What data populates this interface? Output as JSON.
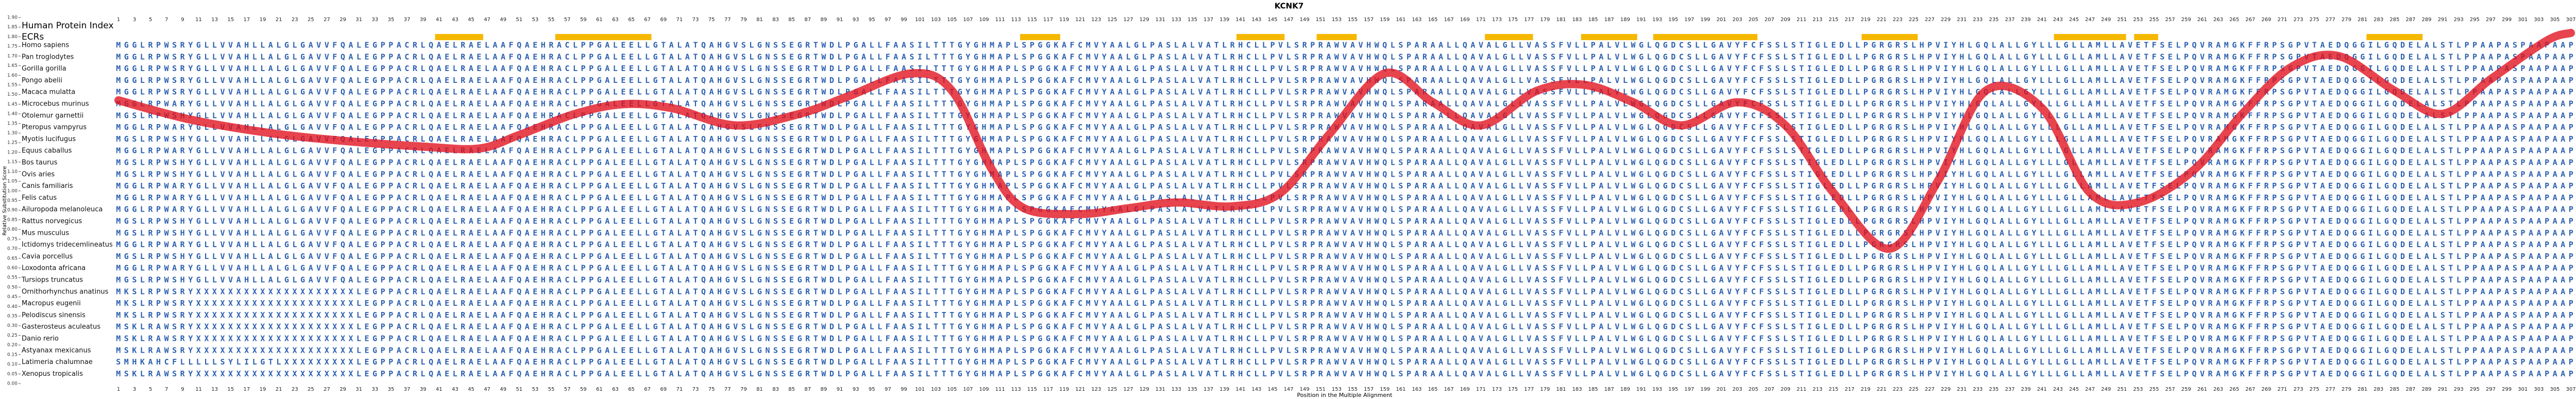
{
  "chart_data": {
    "type": "line",
    "title": "KCNK7",
    "x_label": "Position in the Multiple Alignment",
    "y_label": "Relative Substitution Score",
    "index_label": "Human Protein Index",
    "ecr_label": "ECRs",
    "ecr_color": "#f5b800",
    "ecrs": [
      [
        41,
        46
      ],
      [
        56,
        67
      ],
      [
        114,
        118
      ],
      [
        141,
        146
      ],
      [
        151,
        155
      ],
      [
        172,
        177
      ],
      [
        184,
        190
      ],
      [
        193,
        205
      ],
      [
        219,
        225
      ],
      [
        243,
        251
      ],
      [
        253,
        255
      ],
      [
        282,
        288
      ]
    ],
    "xlim": [
      1,
      307
    ],
    "xticks": [
      1,
      3,
      5,
      7,
      9,
      11,
      13,
      15,
      17,
      19,
      21,
      23,
      25,
      27,
      29,
      31,
      33,
      35,
      37,
      39,
      41,
      43,
      45,
      47,
      49,
      51,
      53,
      55,
      57,
      59,
      61,
      63,
      65,
      67,
      69,
      71,
      73,
      75,
      77,
      79,
      81,
      83,
      85,
      87,
      89,
      91,
      93,
      95,
      97,
      99,
      101,
      103,
      105,
      107,
      109,
      111,
      113,
      115,
      117,
      119,
      121,
      123,
      125,
      127,
      129,
      131,
      133,
      135,
      137,
      139,
      141,
      143,
      145,
      147,
      149,
      151,
      153,
      155,
      157,
      159,
      161,
      163,
      165,
      167,
      169,
      171,
      173,
      175,
      177,
      179,
      181,
      183,
      185,
      187,
      189,
      191,
      193,
      195,
      197,
      199,
      201,
      203,
      205,
      207,
      209,
      211,
      213,
      215,
      217,
      219,
      221,
      223,
      225,
      227,
      229,
      231,
      233,
      235,
      237,
      239,
      241,
      243,
      245,
      247,
      249,
      251,
      253,
      255,
      257,
      259,
      261,
      263,
      265,
      267,
      269,
      271,
      273,
      275,
      277,
      279,
      281,
      283,
      285,
      287,
      289,
      291,
      293,
      295,
      297,
      299,
      301,
      303,
      305,
      307
    ],
    "ylim": [
      0,
      1.9
    ],
    "yticks": [
      {
        "value": 0,
        "label": "0.00"
      },
      {
        "value": 0.05,
        "label": "0.05"
      },
      {
        "value": 0.1,
        "label": "0.10"
      },
      {
        "value": 0.15,
        "label": "0.15"
      },
      {
        "value": 0.2,
        "label": "0.20"
      },
      {
        "value": 0.25,
        "label": "0.25"
      },
      {
        "value": 0.3,
        "label": "0.30"
      },
      {
        "value": 0.35,
        "label": "0.35"
      },
      {
        "value": 0.4,
        "label": "0.40"
      },
      {
        "value": 0.45,
        "label": "0.45"
      },
      {
        "value": 0.5,
        "label": "0.50"
      },
      {
        "value": 0.55,
        "label": "0.55"
      },
      {
        "value": 0.6,
        "label": "0.60"
      },
      {
        "value": 0.65,
        "label": "0.65"
      },
      {
        "value": 0.7,
        "label": "0.70"
      },
      {
        "value": 0.75,
        "label": "0.75"
      },
      {
        "value": 0.8,
        "label": "0.80"
      },
      {
        "value": 0.85,
        "label": "0.85"
      },
      {
        "value": 0.9,
        "label": "0.90"
      },
      {
        "value": 0.95,
        "label": "0.95"
      },
      {
        "value": 1,
        "label": "1.00"
      },
      {
        "value": 1.05,
        "label": "1.05"
      },
      {
        "value": 1.1,
        "label": "1.10"
      },
      {
        "value": 1.15,
        "label": "1.15"
      },
      {
        "value": 1.2,
        "label": "1.20"
      },
      {
        "value": 1.25,
        "label": "1.25"
      },
      {
        "value": 1.3,
        "label": "1.30"
      },
      {
        "value": 1.35,
        "label": "1.35"
      },
      {
        "value": 1.4,
        "label": "1.40"
      },
      {
        "value": 1.45,
        "label": "1.45"
      },
      {
        "value": 1.5,
        "label": "1.50"
      },
      {
        "value": 1.55,
        "label": "1.55"
      },
      {
        "value": 1.6,
        "label": "1.60"
      },
      {
        "value": 1.65,
        "label": "1.65"
      },
      {
        "value": 1.7,
        "label": "1.70"
      },
      {
        "value": 1.75,
        "label": "1.75"
      },
      {
        "value": 1.8,
        "label": "1.80"
      },
      {
        "value": 1.85,
        "label": "1.85"
      },
      {
        "value": 1.9,
        "label": "1.90"
      }
    ],
    "color": "#e0101c",
    "x": [
      1,
      10,
      20,
      29,
      39,
      46,
      51,
      58,
      64,
      70,
      78,
      86,
      92,
      100,
      105,
      110,
      114,
      121,
      127,
      133,
      140,
      146,
      152,
      159,
      165,
      171,
      178,
      184,
      190,
      196,
      203,
      209,
      215,
      222,
      228,
      234,
      241,
      247,
      253,
      260,
      266,
      272,
      278,
      285,
      291,
      297,
      304,
      307
    ],
    "values": [
      1.47,
      1.37,
      1.3,
      1.26,
      1.23,
      1.22,
      1.29,
      1.4,
      1.45,
      1.43,
      1.34,
      1.4,
      1.49,
      1.61,
      1.52,
      1.11,
      0.91,
      0.88,
      0.91,
      0.94,
      0.92,
      0.99,
      1.29,
      1.61,
      1.46,
      1.34,
      1.52,
      1.55,
      1.46,
      1.34,
      1.46,
      1.34,
      0.99,
      0.7,
      1.05,
      1.52,
      1.43,
      0.99,
      0.94,
      1.11,
      1.4,
      1.64,
      1.7,
      1.52,
      1.4,
      1.58,
      1.78,
      1.82
    ],
    "alignment": [
      {
        "name": "Homo sapiens",
        "sequence": "MGGLRPWSRYGLLVVAHLLALGLGAVVFQALEGPPACRLQAELRAELAAFQAEHRACLPPGALEELLGTALATQAHGVSLGNSSEGRTWDLPGALLFAASILTTTGYGHMAPLSPGGKAFCMVYAALGLPASLALVATLRHCLLPVLSRPRAWVAVHWQLSPARAALLQAVALGLLVASSFVLLPALVLWGLQGDCSLLGAVYFCFSSLSTIGLEDLLPGRGRSLHPVIYHLGQLALLGYLLLGLLAMLLAVETFSELPQVRAMGKFFRPSGPVTAEDQGGILGQDELALSTLPPAAPASPAAPAAP"
      },
      {
        "name": "Pan troglodytes",
        "sequence": "MGGLRPWSRYGLLVVAHLLALGLGAVVFQALEGPPACRLQAELRAELAAFQAEHRACLPPGALEELLGTALATQAHGVSLGNSSEGRTWDLPGALLFAASILTTTGYGHMAPLSPGGKAFCMVYAALGLPASLALVATLRHCLLPVLSRPRAWVAVHWQLSPARAALLQAVALGLLVASSFVLLPALVLWGLQGDCSLLGAVYFCFSSLSTIGLEDLLPGRGRSLHPVIYHLGQLALLGYLLLGLLAMLLAVETFSELPQVRAMGKFFRPSGPVTAEDQGGILGQDELALSTLPPAAPASPAAPAAP"
      },
      {
        "name": "Gorilla gorilla",
        "sequence": "MGGLRPWSRYGLLVVAHLLALGLGAVVFQALEGPPACRLQAELRAELAAFQAEHRACLPPGALEELLGTALATQAHGVSLGNSSEGRTWDLPGALLFAASILTTTGYGHMAPLSPGGKAFCMVYAALGLPASLALVATLRHCLLPVLSRPRAWVAVHWQLSPARAALLQAVALGLLVASSFVLLPALVLWGLQGDCSLLGAVYFCFSSLSTIGLEDLLPGRGRSLHPVIYHLGQLALLGYLLLGLLAMLLAVETFSELPQVRAMGKFFRPSGPVTAEDQGGILGQDELALSTLPPAAPASPAAPAAP"
      },
      {
        "name": "Pongo abelii",
        "sequence": "MGGLRPWSRYGLLVVAHLLALGLGAVVFQALEGPPACRLQAELRAELAAFQAEHRACLPPGALEELLGTALATQAHGVSLGNSSEGRTWDLPGALLFAASILTTTGYGHMAPLSPGGKAFCMVYAALGLPASLALVATLRHCLLPVLSRPRAWVAVHWQLSPARAALLQAVALGLLVASSFVLLPALVLWGLQGDCSLLGAVYFCFSSLSTIGLEDLLPGRGRSLHPVIYHLGQLALLGYLLLGLLAMLLAVETFSELPQVRAMGKFFRPSGPVTAEDQGGILGQDELALSTLPPAAPASPAAPAAP"
      },
      {
        "name": "Macaca mulatta",
        "sequence": "MGGLRPWSRYGLLVVAHLLALGLGAVVFQALEGPPACRLQAELRAELAAFQAEHRACLPPGALEELLGTALATQAHGVSLGNSSEGRTWDLPGALLFAASILTTTGYGHMAPLSPGGKAFCMVYAALGLPASLALVATLRHCLLPVLSRPRAWVAVHWQLSPARAALLQAVALGLLVASSFVLLPALVLWGLQGDCSLLGAVYFCFSSLSTIGLEDLLPGRGRSLHPVIYHLGQLALLGYLLLGLLAMLLAVETFSELPQVRAMGKFFRPSGPVTAEDQGGILGQDELALSTLPPAAPASPAAPAAP"
      },
      {
        "name": "Microcebus murinus",
        "sequence": "MGGLRPWARYGLLVVAHLLALGLGAVVFQALEGPPACRLQAELRAELAAFQAEHRACLPPGALEELLGTALATQAHGVSLGNSSEGRTWDLPGALLFAASILTTTGYGHMAPLSPGGKAFCMVYAALGLPASLALVATLRHCLLPVLSRPRAWVAVHWQLSPARAALLQAVALGLLVASSFVLLPALVLWGLQGDCSLLGAVYFCFSSLSTIGLEDLLPGRGRSLHPVIYHLGQLALLGYLLLGLLAMLLAVETFSELPQVRAMGKFFRPSGPVTAEDQGGILGQDELALSTLPPAAPASPAAPAAP"
      },
      {
        "name": "Otolemur garnettii",
        "sequence": "MGSLRPWSHYGLLVVAHLLALGLGAVVFQALEGPPACRLQAELRAELAAFQAEHRACLPPGALEELLGTALATQAHGVSLGNSSEGRTWDLPGALLFAASILTTTGYGHMAPLSPGGKAFCMVYAALGLPASLALVATLRHCLLPVLSRPRAWVAVHWQLSPARAALLQAVALGLLVASSFVLLPALVLWGLQGDCSLLGAVYFCFSSLSTIGLEDLLPGRGRSLHPVIYHLGQLALLGYLLLGLLAMLLAVETFSELPQVRAMGKFFRPSGPVTAEDQGGILGQDELALSTLPPAAPASPAAPAAP"
      },
      {
        "name": "Pteropus vampyrus",
        "sequence": "MGGLRPWARYGLLVVAHLLALGLGAVVFQALEGPPACRLQAELRAELAAFQAEHRACLPPGALEELLGTALATQAHGVSLGNSSEGRTWDLPGALLFAASILTTTGYGHMAPLSPGGKAFCMVYAALGLPASLALVATLRHCLLPVLSRPRAWVAVHWQLSPARAALLQAVALGLLVASSFVLLPALVLWGLQGDCSLLGAVYFCFSSLSTIGLEDLLPGRGRSLHPVIYHLGQLALLGYLLLGLLAMLLAVETFSELPQVRAMGKFFRPSGPVTAEDQGGILGQDELALSTLPPAAPASPAAPAAP"
      },
      {
        "name": "Myotis lucifugus",
        "sequence": "MGSLRPWSHYGLLVVAHLLALGLGAVVFQALEGPPACRLQAELRAELAAFQAEHRACLPPGALEELLGTALATQAHGVSLGNSSEGRTWDLPGALLFAASILTTTGYGHMAPLSPGGKAFCMVYAALGLPASLALVATLRHCLLPVLSRPRAWVAVHWQLSPARAALLQAVALGLLVASSFVLLPALVLWGLQGDCSLLGAVYFCFSSLSTIGLEDLLPGRGRSLHPVIYHLGQLALLGYLLLGLLAMLLAVETFSELPQVRAMGKFFRPSGPVTAEDQGGILGQDELALSTLPPAAPASPAAPAAP"
      },
      {
        "name": "Equus caballus",
        "sequence": "MGGLRPWARYGLLVVAHLLALGLGAVVFQALEGPPACRLQAELRAELAAFQAEHRACLPPGALEELLGTALATQAHGVSLGNSSEGRTWDLPGALLFAASILTTTGYGHMAPLSPGGKAFCMVYAALGLPASLALVATLRHCLLPVLSRPRAWVAVHWQLSPARAALLQAVALGLLVASSFVLLPALVLWGLQGDCSLLGAVYFCFSSLSTIGLEDLLPGRGRSLHPVIYHLGQLALLGYLLLGLLAMLLAVETFSELPQVRAMGKFFRPSGPVTAEDQGGILGQDELALSTLPPAAPASPAAPAAP"
      },
      {
        "name": "Bos taurus",
        "sequence": "MGSLRPWSHYGLLVVAHLLALGLGAVVFQALEGPPACRLQAELRAELAAFQAEHRACLPPGALEELLGTALATQAHGVSLGNSSEGRTWDLPGALLFAASILTTTGYGHMAPLSPGGKAFCMVYAALGLPASLALVATLRHCLLPVLSRPRAWVAVHWQLSPARAALLQAVALGLLVASSFVLLPALVLWGLQGDCSLLGAVYFCFSSLSTIGLEDLLPGRGRSLHPVIYHLGQLALLGYLLLGLLAMLLAVETFSELPQVRAMGKFFRPSGPVTAEDQGGILGQDELALSTLPPAAPASPAAPAAP"
      },
      {
        "name": "Ovis aries",
        "sequence": "MGSLRPWSHYGLLVVAHLLALGLGAVVFQALEGPPACRLQAELRAELAAFQAEHRACLPPGALEELLGTALATQAHGVSLGNSSEGRTWDLPGALLFAASILTTTGYGHMAPLSPGGKAFCMVYAALGLPASLALVATLRHCLLPVLSRPRAWVAVHWQLSPARAALLQAVALGLLVASSFVLLPALVLWGLQGDCSLLGAVYFCFSSLSTIGLEDLLPGRGRSLHPVIYHLGQLALLGYLLLGLLAMLLAVETFSELPQVRAMGKFFRPSGPVTAEDQGGILGQDELALSTLPPAAPASPAAPAAP"
      },
      {
        "name": "Canis familiaris",
        "sequence": "MGGLRPWARYGLLVVAHLLALGLGAVVFQALEGPPACRLQAELRAELAAFQAEHRACLPPGALEELLGTALATQAHGVSLGNSSEGRTWDLPGALLFAASILTTTGYGHMAPLSPGGKAFCMVYAALGLPASLALVATLRHCLLPVLSRPRAWVAVHWQLSPARAALLQAVALGLLVASSFVLLPALVLWGLQGDCSLLGAVYFCFSSLSTIGLEDLLPGRGRSLHPVIYHLGQLALLGYLLLGLLAMLLAVETFSELPQVRAMGKFFRPSGPVTAEDQGGILGQDELALSTLPPAAPASPAAPAAP"
      },
      {
        "name": "Felis catus",
        "sequence": "MGGLRPWARYGLLVVAHLLALGLGAVVFQALEGPPACRLQAELRAELAAFQAEHRACLPPGALEELLGTALATQAHGVSLGNSSEGRTWDLPGALLFAASILTTTGYGHMAPLSPGGKAFCMVYAALGLPASLALVATLRHCLLPVLSRPRAWVAVHWQLSPARAALLQAVALGLLVASSFVLLPALVLWGLQGDCSLLGAVYFCFSSLSTIGLEDLLPGRGRSLHPVIYHLGQLALLGYLLLGLLAMLLAVETFSELPQVRAMGKFFRPSGPVTAEDQGGILGQDELALSTLPPAAPASPAAPAAP"
      },
      {
        "name": "Ailuropoda melanoleuca",
        "sequence": "MGGLRPWARYGLLVVAHLLALGLGAVVFQALEGPPACRLQAELRAELAAFQAEHRACLPPGALEELLGTALATQAHGVSLGNSSEGRTWDLPGALLFAASILTTTGYGHMAPLSPGGKAFCMVYAALGLPASLALVATLRHCLLPVLSRPRAWVAVHWQLSPARAALLQAVALGLLVASSFVLLPALVLWGLQGDCSLLGAVYFCFSSLSTIGLEDLLPGRGRSLHPVIYHLGQLALLGYLLLGLLAMLLAVETFSELPQVRAMGKFFRPSGPVTAEDQGGILGQDELALSTLPPAAPASPAAPAAP"
      },
      {
        "name": "Rattus norvegicus",
        "sequence": "MGSLRPWSHYGLLVVAHLLALGLGAVVFQALEGPPACRLQAELRAELAAFQAEHRACLPPGALEELLGTALATQAHGVSLGNSSEGRTWDLPGALLFAASILTTTGYGHMAPLSPGGKAFCMVYAALGLPASLALVATLRHCLLPVLSRPRAWVAVHWQLSPARAALLQAVALGLLVASSFVLLPALVLWGLQGDCSLLGAVYFCFSSLSTIGLEDLLPGRGRSLHPVIYHLGQLALLGYLLLGLLAMLLAVETFSELPQVRAMGKFFRPSGPVTAEDQGGILGQDELALSTLPPAAPASPAAPAAP"
      },
      {
        "name": "Mus musculus",
        "sequence": "MGSLRPWSHYGLLVVAHLLALGLGAVVFQALEGPPACRLQAELRAELAAFQAEHRACLPPGALEELLGTALATQAHGVSLGNSSEGRTWDLPGALLFAASILTTTGYGHMAPLSPGGKAFCMVYAALGLPASLALVATLRHCLLPVLSRPRAWVAVHWQLSPARAALLQAVALGLLVASSFVLLPALVLWGLQGDCSLLGAVYFCFSSLSTIGLEDLLPGRGRSLHPVIYHLGQLALLGYLLLGLLAMLLAVETFSELPQVRAMGKFFRPSGPVTAEDQGGILGQDELALSTLPPAAPASPAAPAAP"
      },
      {
        "name": "Ictidomys tridecemlineatus",
        "sequence": "MGGLRPWARYGLLVVAHLLALGLGAVVFQALEGPPACRLQAELRAELAAFQAEHRACLPPGALEELLGTALATQAHGVSLGNSSEGRTWDLPGALLFAASILTTTGYGHMAPLSPGGKAFCMVYAALGLPASLALVATLRHCLLPVLSRPRAWVAVHWQLSPARAALLQAVALGLLVASSFVLLPALVLWGLQGDCSLLGAVYFCFSSLSTIGLEDLLPGRGRSLHPVIYHLGQLALLGYLLLGLLAMLLAVETFSELPQVRAMGKFFRPSGPVTAEDQGGILGQDELALSTLPPAAPASPAAPAAP"
      },
      {
        "name": "Cavia porcellus",
        "sequence": "MGSLRPWSHYGLLVVAHLLALGLGAVVFQALEGPPACRLQAELRAELAAFQAEHRACLPPGALEELLGTALATQAHGVSLGNSSEGRTWDLPGALLFAASILTTTGYGHMAPLSPGGKAFCMVYAALGLPASLALVATLRHCLLPVLSRPRAWVAVHWQLSPARAALLQAVALGLLVASSFVLLPALVLWGLQGDCSLLGAVYFCFSSLSTIGLEDLLPGRGRSLHPVIYHLGQLALLGYLLLGLLAMLLAVETFSELPQVRAMGKFFRPSGPVTAEDQGGILGQDELALSTLPPAAPASPAAPAAP"
      },
      {
        "name": "Loxodonta africana",
        "sequence": "MGGLRPWARYGLLVVAHLLALGLGAVVFQALEGPPACRLQAELRAELAAFQAEHRACLPPGALEELLGTALATQAHGVSLGNSSEGRTWDLPGALLFAASILTTTGYGHMAPLSPGGKAFCMVYAALGLPASLALVATLRHCLLPVLSRPRAWVAVHWQLSPARAALLQAVALGLLVASSFVLLPALVLWGLQGDCSLLGAVYFCFSSLSTIGLEDLLPGRGRSLHPVIYHLGQLALLGYLLLGLLAMLLAVETFSELPQVRAMGKFFRPSGPVTAEDQGGILGQDELALSTLPPAAPASPAAPAAP"
      },
      {
        "name": "Tursiops truncatus",
        "sequence": "MGSLRPWSHYGLLVVAHLLALGLGAVVFQALEGPPACRLQAELRAELAAFQAEHRACLPPGALEELLGTALATQAHGVSLGNSSEGRTWDLPGALLFAASILTTTGYGHMAPLSPGGKAFCMVYAALGLPASLALVATLRHCLLPVLSRPRAWVAVHWQLSPARAALLQAVALGLLVASSFVLLPALVLWGLQGDCSLLGAVYFCFSSLSTIGLEDLLPGRGRSLHPVIYHLGQLALLGYLLLGLLAMLLAVETFSELPQVRAMGKFFRPSGPVTAEDQGGILGQDELALSTLPPAAPASPAAPAAP"
      },
      {
        "name": "Ornithorhynchus anatinus",
        "sequence": "MKSLRPWSRYXXXXXXXXXXXXXXXXXXXXLEGPPACRLQAELRAELAAFQAEHRACLPPGALEELLGTALATQAHGVSLGNSSEGRTWDLPGALLFAASILTTTGYGHMAPLSPGGKAFCMVYAALGLPASLALVATLRHCLLPVLSRPRAWVAVHWQLSPARAALLQAVALGLLVASSFVLLPALVLWGLQGDCSLLGAVYFCFSSLSTIGLEDLLPGRGRSLHPVIYHLGQLALLGYLLLGLLAMLLAVETFSELPQVRAMGKFFRPSGPVTAEDQGGILGQDELALSTLPPAAPASPAAPAAP"
      },
      {
        "name": "Macropus eugenii",
        "sequence": "MKSLRPWSRYXXXXXXXXXXXXXXXXXXXXLEGPPACRLQAELRAELAAFQAEHRACLPPGALEELLGTALATQAHGVSLGNSSEGRTWDLPGALLFAASILTTTGYGHMAPLSPGGKAFCMVYAALGLPASLALVATLRHCLLPVLSRPRAWVAVHWQLSPARAALLQAVALGLLVASSFVLLPALVLWGLQGDCSLLGAVYFCFSSLSTIGLEDLLPGRGRSLHPVIYHLGQLALLGYLLLGLLAMLLAVETFSELPQVRAMGKFFRPSGPVTAEDQGGILGQDELALSTLPPAAPASPAAPAAP"
      },
      {
        "name": "Pelodiscus sinensis",
        "sequence": "MKSLRPWSRYXXXXXXXXXXXXXXXXXXXXLEGPPACRLQAELRAELAAFQAEHRACLPPGALEELLGTALATQAHGVSLGNSSEGRTWDLPGALLFAASILTTTGYGHMAPLSPGGKAFCMVYAALGLPASLALVATLRHCLLPVLSRPRAWVAVHWQLSPARAALLQAVALGLLVASSFVLLPALVLWGLQGDCSLLGAVYFCFSSLSTIGLEDLLPGRGRSLHPVIYHLGQLALLGYLLLGLLAMLLAVETFSELPQVRAMGKFFRPSGPVTAEDQGGILGQDELALSTLPPAAPASPAAPAAP"
      },
      {
        "name": "Gasterosteus aculeatus",
        "sequence": "MSKLRAWSRYXXXXXXXXXXXXXXXXXXXXLEGPPACRLQAELRAELAAFQAEHRACLPPGALEELLGTALATQAHGVSLGNSSEGRTWDLPGALLFAASILTTTGYGHMAPLSPGGKAFCMVYAALGLPASLALVATLRHCLLPVLSRPRAWVAVHWQLSPARAALLQAVALGLLVASSFVLLPALVLWGLQGDCSLLGAVYFCFSSLSTIGLEDLLPGRGRSLHPVIYHLGQLALLGYLLLGLLAMLLAVETFSELPQVRAMGKFFRPSGPVTAEDQGGILGQDELALSTLPPAAPASPAAPAAP"
      },
      {
        "name": "Danio rerio",
        "sequence": "MSKLRAWSRYXXXXXXXXXXXXXXXXXXXXLEGPPACRLQAELRAELAAFQAEHRACLPPGALEELLGTALATQAHGVSLGNSSEGRTWDLPGALLFAASILTTTGYGHMAPLSPGGKAFCMVYAALGLPASLALVATLRHCLLPVLSRPRAWVAVHWQLSPARAALLQAVALGLLVASSFVLLPALVLWGLQGDCSLLGAVYFCFSSLSTIGLEDLLPGRGRSLHPVIYHLGQLALLGYLLLGLLAMLLAVETFSELPQVRAMGKFFRPSGPVTAEDQGGILGQDELALSTLPPAAPASPAAPAAP"
      },
      {
        "name": "Astyanax mexicanus",
        "sequence": "MSKLRAWSRYXXXXXXXXXXXXXXXXXXXXLEGPPACRLQAELRAELAAFQAEHRACLPPGALEELLGTALATQAHGVSLGNSSEGRTWDLPGALLFAASILTTTGYGHMAPLSPGGKAFCMVYAALGLPASLALVATLRHCLLPVLSRPRAWVAVHWQLSPARAALLQAVALGLLVASSFVLLPALVLWGLQGDCSLLGAVYFCFSSLSTIGLEDLLPGRGRSLHPVIYHLGQLALLGYLLLGLLAMLLAVETFSELPQVRAMGKFFRPSGPVTAEDQGGILGQDELALSTLPPAAPASPAAPAAP"
      },
      {
        "name": "Latimeria chalumnae",
        "sequence": "SMHKAHCFLLLLLSYLILGTLXXXXXXXXXLEGPPACRLQAELRAELAAFQAEHRACLPPGALEELLGTALATQAHGVSLGNSSEGRTWDLPGALLFAASILTTTGYGHMAPLSPGGKAFCMVYAALGLPASLALVATLRHCLLPVLSRPRAWVAVHWQLSPARAALLQAVALGLLVASSFVLLPALVLWGLQGDCSLLGAVYFCFSSLSTIGLEDLLPGRGRSLHPVIYHLGQLALLGYLLLGLLAMLLAVETFSELPQVRAMGKFFRPSGPVTAEDQGGILGQDELALSTLPPAAPASPAAPAAP"
      },
      {
        "name": "Xenopus tropicalis",
        "sequence": "MSKLRAWSRYXXXXXXXXXXXXXXXXXXXXLEGPPACRLQAELRAELAAFQAEHRACLPPGALEELLGTALATQAHGVSLGNSSEGRTWDLPGALLFAASILTTTGYGHMAPLSPGGKAFCMVYAALGLPASLALVATLRHCLLPVLSRPRAWVAVHWQLSPARAALLQAVALGLLVASSFVLLPALVLWGLQGDCSLLGAVYFCFSSLSTIGLEDLLPGRGRSLHPVIYHLGQLALLGYLLLGLLAMLLAVETFSELPQVRAMGKFFRPSGPVTAEDQGGILGQDELALSTLPPAAPASPAAPAAP"
      }
    ]
  }
}
